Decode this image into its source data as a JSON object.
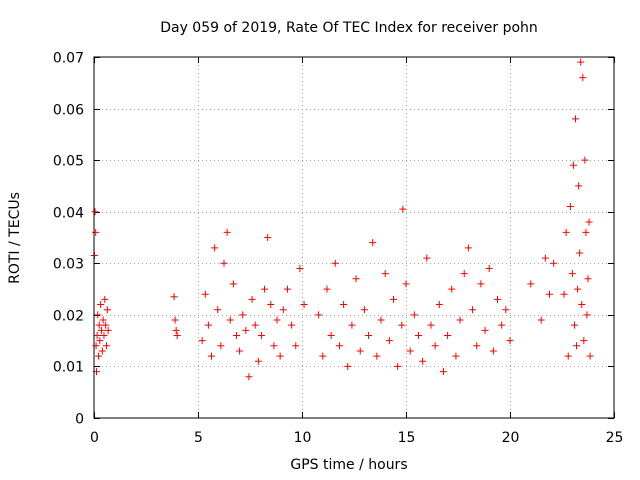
{
  "chart_data": {
    "type": "scatter",
    "title": "Day 059 of 2019, Rate Of TEC Index for receiver pohn",
    "xlabel": "GPS time / hours",
    "ylabel": "ROTI / TECUs",
    "xlim": [
      0,
      25
    ],
    "ylim": [
      0,
      0.07
    ],
    "x_ticks": [
      0,
      5,
      10,
      15,
      20,
      25
    ],
    "x_tick_labels": [
      "0",
      "5",
      "10",
      "15",
      "20",
      "25"
    ],
    "y_ticks": [
      0,
      0.01,
      0.02,
      0.03,
      0.04,
      0.05,
      0.06,
      0.07
    ],
    "y_tick_labels": [
      "0",
      "0.01",
      "0.02",
      "0.03",
      "0.04",
      "0.05",
      "0.06",
      "0.07"
    ],
    "grid": true,
    "marker": "plus",
    "series": [
      {
        "name": "ROTI",
        "color": "#ff0000",
        "x": [
          0.02,
          0.05,
          0.08,
          0.1,
          0.12,
          0.15,
          0.18,
          0.22,
          0.25,
          0.28,
          0.32,
          0.36,
          0.4,
          0.44,
          0.48,
          0.52,
          0.56,
          0.6,
          0.64,
          0.68,
          3.85,
          3.9,
          3.95,
          4.0,
          5.2,
          5.35,
          5.5,
          5.65,
          5.8,
          5.95,
          6.1,
          6.25,
          6.4,
          6.55,
          6.7,
          6.85,
          7.0,
          7.15,
          7.3,
          7.45,
          7.6,
          7.75,
          7.9,
          8.05,
          8.2,
          8.35,
          8.5,
          8.65,
          8.8,
          8.95,
          9.1,
          9.3,
          9.5,
          9.7,
          9.9,
          10.1,
          10.8,
          11.0,
          11.2,
          11.4,
          11.6,
          11.8,
          12.0,
          12.2,
          12.4,
          12.6,
          12.8,
          13.0,
          13.2,
          13.4,
          13.6,
          13.8,
          14.0,
          14.2,
          14.4,
          14.6,
          14.8,
          14.85,
          15.0,
          15.2,
          15.4,
          15.6,
          15.8,
          16.0,
          16.2,
          16.4,
          16.6,
          16.8,
          17.0,
          17.2,
          17.4,
          17.6,
          17.8,
          18.0,
          18.2,
          18.4,
          18.6,
          18.8,
          19.0,
          19.2,
          19.4,
          19.6,
          19.8,
          20.0,
          21.0,
          21.5,
          21.7,
          21.9,
          22.1,
          22.6,
          22.7,
          22.8,
          22.9,
          23.0,
          23.05,
          23.1,
          23.15,
          23.2,
          23.25,
          23.3,
          23.35,
          23.4,
          23.45,
          23.5,
          23.55,
          23.6,
          23.65,
          23.7,
          23.75,
          23.8,
          23.85
        ],
        "y": [
          0.0315,
          0.04,
          0.036,
          0.014,
          0.009,
          0.016,
          0.02,
          0.012,
          0.018,
          0.015,
          0.022,
          0.017,
          0.013,
          0.019,
          0.016,
          0.023,
          0.018,
          0.014,
          0.021,
          0.017,
          0.0235,
          0.019,
          0.017,
          0.016,
          0.015,
          0.024,
          0.018,
          0.012,
          0.033,
          0.021,
          0.014,
          0.03,
          0.036,
          0.019,
          0.026,
          0.016,
          0.013,
          0.02,
          0.017,
          0.008,
          0.023,
          0.018,
          0.011,
          0.016,
          0.025,
          0.035,
          0.022,
          0.014,
          0.019,
          0.012,
          0.021,
          0.025,
          0.018,
          0.014,
          0.029,
          0.022,
          0.02,
          0.012,
          0.025,
          0.016,
          0.03,
          0.014,
          0.022,
          0.01,
          0.018,
          0.027,
          0.013,
          0.021,
          0.016,
          0.034,
          0.012,
          0.019,
          0.028,
          0.015,
          0.023,
          0.01,
          0.018,
          0.0405,
          0.026,
          0.013,
          0.02,
          0.016,
          0.011,
          0.031,
          0.018,
          0.014,
          0.022,
          0.009,
          0.016,
          0.025,
          0.012,
          0.019,
          0.028,
          0.033,
          0.021,
          0.014,
          0.026,
          0.017,
          0.029,
          0.013,
          0.023,
          0.018,
          0.021,
          0.015,
          0.026,
          0.019,
          0.031,
          0.024,
          0.03,
          0.024,
          0.036,
          0.012,
          0.041,
          0.028,
          0.049,
          0.018,
          0.058,
          0.014,
          0.025,
          0.045,
          0.032,
          0.069,
          0.022,
          0.066,
          0.015,
          0.05,
          0.036,
          0.02,
          0.027,
          0.038,
          0.012
        ]
      }
    ]
  }
}
